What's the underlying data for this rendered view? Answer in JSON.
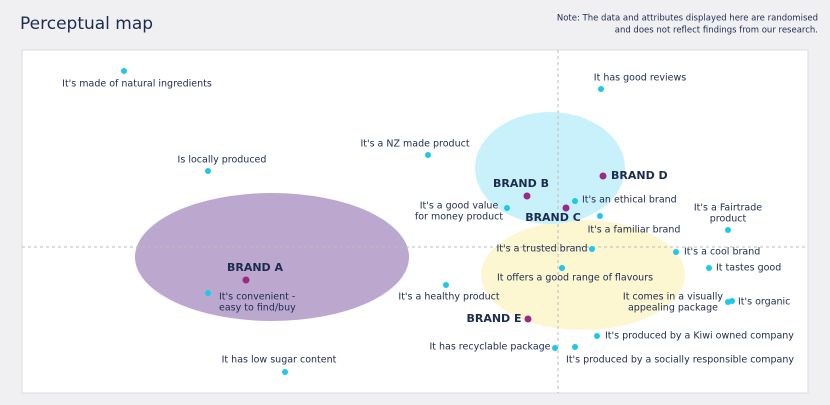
{
  "header": {
    "title": "Perceptual map",
    "note": [
      "Note: The data and attributes displayed here are randomised",
      "and does not reflect findings from our research."
    ]
  },
  "attributes": [
    {
      "label": [
        "It's made of natural ingredients"
      ]
    },
    {
      "label": [
        "It has good reviews"
      ]
    },
    {
      "label": [
        "It's a NZ made product"
      ]
    },
    {
      "label": [
        "Is locally produced"
      ]
    },
    {
      "label": [
        "It's an ethical brand"
      ]
    },
    {
      "label": [
        "It's a good value",
        "for money product"
      ]
    },
    {
      "label": [
        "It's a Fairtrade",
        "product"
      ]
    },
    {
      "label": [
        "It's a familiar brand"
      ]
    },
    {
      "label": [
        "It's a trusted brand"
      ]
    },
    {
      "label": [
        "It's a cool brand"
      ]
    },
    {
      "label": [
        "It offers a good range of flavours"
      ]
    },
    {
      "label": [
        "It tastes good"
      ]
    },
    {
      "label": [
        "It's a healthy product"
      ]
    },
    {
      "label": [
        "It's convenient -",
        "easy to find/buy"
      ]
    },
    {
      "label": [
        "It comes in a visually",
        "appealing package"
      ]
    },
    {
      "label": [
        "It's organic"
      ]
    },
    {
      "label": [
        "It's produced by a Kiwi owned company"
      ]
    },
    {
      "label": [
        "It has recyclable package"
      ]
    },
    {
      "label": [
        "It's produced by a socially responsible company"
      ]
    },
    {
      "label": [
        "It has low sugar content"
      ]
    }
  ],
  "brands": [
    {
      "label": "BRAND A"
    },
    {
      "label": "BRAND B"
    },
    {
      "label": "BRAND C"
    },
    {
      "label": "BRAND D"
    },
    {
      "label": "BRAND E"
    }
  ]
}
